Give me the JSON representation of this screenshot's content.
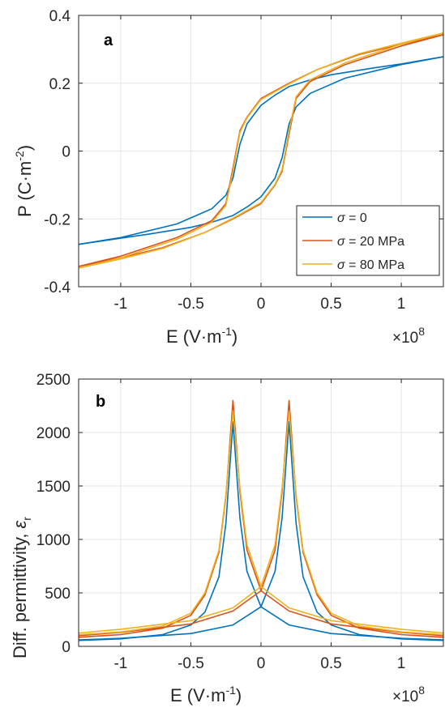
{
  "chart_data": [
    {
      "type": "line",
      "panel_label": "a",
      "xlabel_main": "E (V·m",
      "xlabel_sup": "-1",
      "xlabel_end": ")",
      "x_exponent_base": "×10",
      "x_exponent_power": "8",
      "ylabel_main": "P (C·m",
      "ylabel_sup": "-2",
      "ylabel_end": ")",
      "xlim": [
        -1.3,
        1.3
      ],
      "ylim": [
        -0.4,
        0.4
      ],
      "xticks": [
        -1,
        -0.5,
        0,
        0.5,
        1
      ],
      "xtick_labels": [
        "-1",
        "-0.5",
        "0",
        "0.5",
        "1"
      ],
      "yticks": [
        -0.4,
        -0.2,
        0,
        0.2,
        0.4
      ],
      "ytick_labels": [
        "-0.4",
        "-0.2",
        "0",
        "0.2",
        "0.4"
      ],
      "grid": true,
      "legend_position": "bottom-right",
      "series": [
        {
          "name": "σ = 0",
          "legend_symbol": "σ",
          "legend_rest": " = 0",
          "color": "#0072BD",
          "upper_branch": {
            "x": [
              -1.3,
              -1.0,
              -0.6,
              -0.35,
              -0.25,
              -0.2,
              -0.15,
              -0.1,
              0.0,
              0.1,
              0.2,
              0.35,
              0.5,
              0.8,
              1.0,
              1.3
            ],
            "y": [
              -0.275,
              -0.255,
              -0.215,
              -0.17,
              -0.13,
              -0.08,
              0.02,
              0.08,
              0.135,
              0.165,
              0.19,
              0.21,
              0.225,
              0.245,
              0.257,
              0.278
            ]
          },
          "lower_branch": {
            "x": [
              1.3,
              1.0,
              0.6,
              0.35,
              0.25,
              0.2,
              0.15,
              0.1,
              0.0,
              -0.1,
              -0.2,
              -0.35,
              -0.5,
              -0.8,
              -1.0,
              -1.3
            ],
            "y": [
              0.278,
              0.255,
              0.215,
              0.17,
              0.13,
              0.08,
              -0.02,
              -0.08,
              -0.135,
              -0.165,
              -0.19,
              -0.21,
              -0.225,
              -0.245,
              -0.257,
              -0.275
            ]
          }
        },
        {
          "name": "σ = 20 MPa",
          "legend_symbol": "σ",
          "legend_rest": " = 20 MPa",
          "color": "#D95319",
          "upper_branch": {
            "x": [
              -1.3,
              -1.0,
              -0.6,
              -0.35,
              -0.25,
              -0.2,
              -0.15,
              -0.1,
              0.0,
              0.2,
              0.4,
              0.7,
              1.0,
              1.3
            ],
            "y": [
              -0.34,
              -0.31,
              -0.255,
              -0.205,
              -0.155,
              -0.05,
              0.06,
              0.1,
              0.155,
              0.2,
              0.24,
              0.285,
              0.315,
              0.343
            ]
          },
          "lower_branch": {
            "x": [
              1.3,
              1.0,
              0.6,
              0.35,
              0.25,
              0.2,
              0.15,
              0.1,
              0.0,
              -0.2,
              -0.4,
              -0.7,
              -1.0,
              -1.3
            ],
            "y": [
              0.343,
              0.31,
              0.255,
              0.205,
              0.155,
              0.05,
              -0.06,
              -0.1,
              -0.155,
              -0.2,
              -0.24,
              -0.285,
              -0.315,
              -0.34
            ]
          }
        },
        {
          "name": "σ = 80 MPa",
          "legend_symbol": "σ",
          "legend_rest": " = 80 MPa",
          "color": "#EDB120",
          "upper_branch": {
            "x": [
              -1.3,
              -1.0,
              -0.6,
              -0.35,
              -0.25,
              -0.2,
              -0.15,
              -0.1,
              0.0,
              0.2,
              0.4,
              0.7,
              1.0,
              1.3
            ],
            "y": [
              -0.345,
              -0.315,
              -0.26,
              -0.21,
              -0.16,
              -0.06,
              0.055,
              0.098,
              0.152,
              0.198,
              0.24,
              0.287,
              0.318,
              0.348
            ]
          },
          "lower_branch": {
            "x": [
              1.3,
              1.0,
              0.6,
              0.35,
              0.25,
              0.2,
              0.15,
              0.1,
              0.0,
              -0.2,
              -0.4,
              -0.7,
              -1.0,
              -1.3
            ],
            "y": [
              0.348,
              0.315,
              0.26,
              0.21,
              0.16,
              0.06,
              -0.055,
              -0.098,
              -0.152,
              -0.198,
              -0.24,
              -0.287,
              -0.318,
              -0.345
            ]
          }
        }
      ]
    },
    {
      "type": "line",
      "panel_label": "b",
      "xlabel_main": "E (V·m",
      "xlabel_sup": "-1",
      "xlabel_end": ")",
      "x_exponent_base": "×10",
      "x_exponent_power": "8",
      "ylabel_main": "Diff. permittivity, ",
      "ylabel_symbol": "ε",
      "ylabel_sub": "r",
      "xlim": [
        -1.3,
        1.3
      ],
      "ylim": [
        0,
        2500
      ],
      "xticks": [
        -1,
        -0.5,
        0,
        0.5,
        1
      ],
      "xtick_labels": [
        "-1",
        "-0.5",
        "0",
        "0.5",
        "1"
      ],
      "yticks": [
        0,
        500,
        1000,
        1500,
        2000,
        2500
      ],
      "ytick_labels": [
        "0",
        "500",
        "1000",
        "1500",
        "2000",
        "2500"
      ],
      "grid": true,
      "series": [
        {
          "name": "σ = 0",
          "color": "#0072BD",
          "left_peak": {
            "x": [
              -1.3,
              -1.0,
              -0.7,
              -0.5,
              -0.4,
              -0.3,
              -0.25,
              -0.2,
              -0.15,
              -0.1,
              0.0,
              0.2,
              0.5,
              1.0,
              1.3
            ],
            "y": [
              55,
              70,
              110,
              200,
              320,
              650,
              1150,
              2100,
              1200,
              700,
              370,
              200,
              120,
              75,
              60
            ]
          },
          "right_peak": {
            "x": [
              -1.3,
              -1.0,
              -0.5,
              -0.2,
              0.0,
              0.1,
              0.15,
              0.2,
              0.25,
              0.3,
              0.4,
              0.5,
              0.7,
              1.0,
              1.3
            ],
            "y": [
              60,
              75,
              120,
              200,
              370,
              700,
              1200,
              2100,
              1150,
              650,
              320,
              200,
              110,
              70,
              55
            ]
          }
        },
        {
          "name": "σ = 20 MPa",
          "color": "#D95319",
          "left_peak": {
            "x": [
              -1.3,
              -1.0,
              -0.7,
              -0.5,
              -0.4,
              -0.3,
              -0.25,
              -0.2,
              -0.15,
              -0.1,
              0.0,
              0.2,
              0.5,
              1.0,
              1.3
            ],
            "y": [
              85,
              110,
              170,
              290,
              480,
              880,
              1400,
              2300,
              1450,
              900,
              520,
              330,
              210,
              130,
              100
            ]
          },
          "right_peak": {
            "x": [
              -1.3,
              -1.0,
              -0.5,
              -0.2,
              0.0,
              0.1,
              0.15,
              0.2,
              0.25,
              0.3,
              0.4,
              0.5,
              0.7,
              1.0,
              1.3
            ],
            "y": [
              100,
              130,
              210,
              330,
              520,
              900,
              1450,
              2300,
              1400,
              880,
              480,
              290,
              170,
              110,
              85
            ]
          }
        },
        {
          "name": "σ = 80 MPa",
          "color": "#EDB120",
          "left_peak": {
            "x": [
              -1.3,
              -1.0,
              -0.7,
              -0.5,
              -0.4,
              -0.3,
              -0.25,
              -0.2,
              -0.15,
              -0.1,
              0.0,
              0.2,
              0.5,
              1.0,
              1.3
            ],
            "y": [
              110,
              135,
              190,
              310,
              500,
              900,
              1420,
              2200,
              1480,
              950,
              560,
              360,
              240,
              160,
              125
            ]
          },
          "right_peak": {
            "x": [
              -1.3,
              -1.0,
              -0.5,
              -0.2,
              0.0,
              0.1,
              0.15,
              0.2,
              0.25,
              0.3,
              0.4,
              0.5,
              0.7,
              1.0,
              1.3
            ],
            "y": [
              125,
              160,
              240,
              360,
              560,
              950,
              1480,
              2200,
              1420,
              900,
              500,
              310,
              190,
              135,
              110
            ]
          }
        }
      ]
    }
  ]
}
